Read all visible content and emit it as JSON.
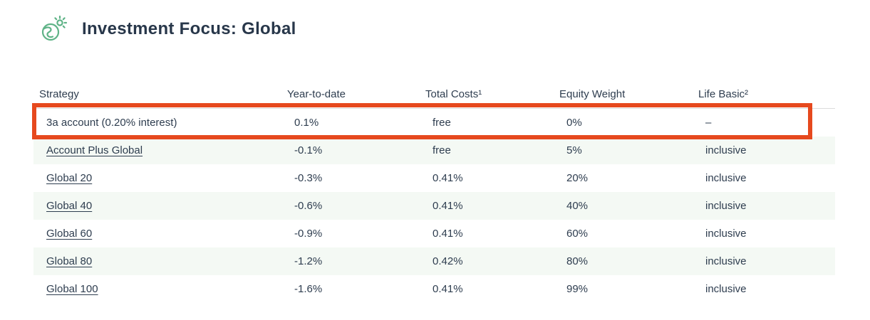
{
  "header": {
    "title": "Investment Focus: Global",
    "icon": "globe-sparkle-icon"
  },
  "table": {
    "columns": [
      {
        "label": "Strategy"
      },
      {
        "label": "Year-to-date"
      },
      {
        "label": "Total Costs¹"
      },
      {
        "label": "Equity Weight"
      },
      {
        "label": "Life Basic²"
      }
    ],
    "rows": [
      {
        "strategy": "3a account (0.20% interest)",
        "link": false,
        "highlighted": true,
        "year_to_date": "0.1%",
        "total_costs": "free",
        "equity_weight": "0%",
        "life_basic": "–"
      },
      {
        "strategy": "Account Plus Global",
        "link": true,
        "highlighted": false,
        "year_to_date": "-0.1%",
        "total_costs": "free",
        "equity_weight": "5%",
        "life_basic": "inclusive"
      },
      {
        "strategy": "Global 20",
        "link": true,
        "highlighted": false,
        "year_to_date": "-0.3%",
        "total_costs": "0.41%",
        "equity_weight": "20%",
        "life_basic": "inclusive"
      },
      {
        "strategy": "Global 40",
        "link": true,
        "highlighted": false,
        "year_to_date": "-0.6%",
        "total_costs": "0.41%",
        "equity_weight": "40%",
        "life_basic": "inclusive"
      },
      {
        "strategy": "Global 60",
        "link": true,
        "highlighted": false,
        "year_to_date": "-0.9%",
        "total_costs": "0.41%",
        "equity_weight": "60%",
        "life_basic": "inclusive"
      },
      {
        "strategy": "Global 80",
        "link": true,
        "highlighted": false,
        "year_to_date": "-1.2%",
        "total_costs": "0.42%",
        "equity_weight": "80%",
        "life_basic": "inclusive"
      },
      {
        "strategy": "Global 100",
        "link": true,
        "highlighted": false,
        "year_to_date": "-1.6%",
        "total_costs": "0.41%",
        "equity_weight": "99%",
        "life_basic": "inclusive"
      }
    ]
  },
  "colors": {
    "accent_orange": "#E6491E",
    "brand_green": "#5FB387",
    "text_dark": "#2D3C4E",
    "row_alt_bg": "#F4F9F4",
    "divider": "#DCDCDC"
  }
}
